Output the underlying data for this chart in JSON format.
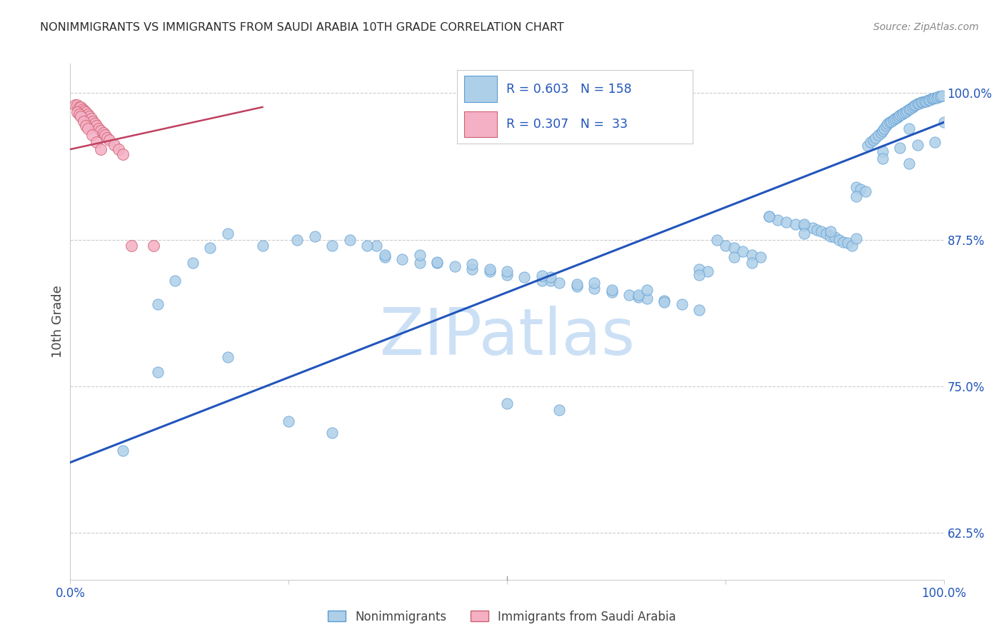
{
  "title": "NONIMMIGRANTS VS IMMIGRANTS FROM SAUDI ARABIA 10TH GRADE CORRELATION CHART",
  "source": "Source: ZipAtlas.com",
  "ylabel": "10th Grade",
  "xlim": [
    0.0,
    1.0
  ],
  "ylim": [
    0.585,
    1.025
  ],
  "yticks": [
    0.625,
    0.75,
    0.875,
    1.0
  ],
  "ytick_labels": [
    "62.5%",
    "75.0%",
    "87.5%",
    "100.0%"
  ],
  "xtick_vals": [
    0.0,
    0.25,
    0.5,
    0.75,
    1.0
  ],
  "xtick_labels": [
    "0.0%",
    "",
    "",
    "",
    "100.0%"
  ],
  "ni_fill": "#aecfe8",
  "ni_edge": "#5b9bd5",
  "ni_line": "#2255bb",
  "im_fill": "#f4b0c5",
  "im_edge": "#d06070",
  "im_line": "#c04060",
  "legend_text_color": "#2255bb",
  "grid_color": "#cccccc",
  "title_color": "#2a2a2a",
  "source_color": "#888888",
  "tick_color": "#2255bb",
  "ylabel_color": "#444444",
  "watermark_text": "ZIPatlas",
  "watermark_color": "#cce0f5",
  "blue_line_x": [
    0.0,
    1.0
  ],
  "blue_line_y": [
    0.685,
    0.975
  ],
  "pink_line_x": [
    0.0,
    0.22
  ],
  "pink_line_y": [
    0.952,
    0.988
  ],
  "ni_x": [
    0.06,
    0.1,
    0.12,
    0.14,
    0.16,
    0.18,
    0.22,
    0.26,
    0.3,
    0.32,
    0.35,
    0.36,
    0.38,
    0.4,
    0.42,
    0.44,
    0.46,
    0.48,
    0.5,
    0.52,
    0.54,
    0.55,
    0.56,
    0.58,
    0.6,
    0.62,
    0.64,
    0.65,
    0.66,
    0.68,
    0.7,
    0.72,
    0.73,
    0.74,
    0.75,
    0.76,
    0.77,
    0.78,
    0.79,
    0.8,
    0.81,
    0.82,
    0.83,
    0.84,
    0.85,
    0.855,
    0.86,
    0.865,
    0.87,
    0.875,
    0.88,
    0.885,
    0.89,
    0.895,
    0.9,
    0.905,
    0.91,
    0.913,
    0.916,
    0.919,
    0.922,
    0.925,
    0.928,
    0.93,
    0.932,
    0.934,
    0.936,
    0.938,
    0.94,
    0.942,
    0.944,
    0.946,
    0.948,
    0.95,
    0.952,
    0.954,
    0.956,
    0.958,
    0.96,
    0.962,
    0.964,
    0.966,
    0.968,
    0.97,
    0.972,
    0.974,
    0.976,
    0.978,
    0.98,
    0.982,
    0.984,
    0.986,
    0.988,
    0.99,
    0.992,
    0.994,
    0.996,
    0.998,
    1.0,
    0.28,
    0.34,
    0.4,
    0.46,
    0.5,
    0.55,
    0.58,
    0.62,
    0.65,
    0.68,
    0.72,
    0.76,
    0.8,
    0.84,
    0.87,
    0.9,
    0.93,
    0.95,
    0.97,
    0.99,
    0.36,
    0.42,
    0.48,
    0.54,
    0.6,
    0.66,
    0.72,
    0.78,
    0.84,
    0.9,
    0.93,
    0.96,
    0.1,
    0.18,
    0.25,
    0.3,
    0.5,
    0.56,
    0.96
  ],
  "ni_y": [
    0.695,
    0.82,
    0.84,
    0.855,
    0.868,
    0.88,
    0.87,
    0.875,
    0.87,
    0.875,
    0.87,
    0.86,
    0.858,
    0.855,
    0.855,
    0.852,
    0.85,
    0.848,
    0.845,
    0.843,
    0.84,
    0.84,
    0.838,
    0.835,
    0.833,
    0.83,
    0.828,
    0.826,
    0.825,
    0.823,
    0.82,
    0.85,
    0.848,
    0.875,
    0.87,
    0.868,
    0.865,
    0.862,
    0.86,
    0.895,
    0.892,
    0.89,
    0.888,
    0.887,
    0.885,
    0.883,
    0.882,
    0.88,
    0.878,
    0.877,
    0.875,
    0.873,
    0.872,
    0.87,
    0.92,
    0.918,
    0.916,
    0.955,
    0.958,
    0.96,
    0.962,
    0.964,
    0.966,
    0.968,
    0.97,
    0.972,
    0.974,
    0.975,
    0.976,
    0.977,
    0.978,
    0.979,
    0.98,
    0.981,
    0.982,
    0.983,
    0.984,
    0.985,
    0.986,
    0.987,
    0.988,
    0.989,
    0.99,
    0.991,
    0.991,
    0.992,
    0.992,
    0.993,
    0.993,
    0.994,
    0.994,
    0.995,
    0.995,
    0.996,
    0.996,
    0.997,
    0.997,
    0.998,
    0.975,
    0.878,
    0.87,
    0.862,
    0.854,
    0.848,
    0.843,
    0.837,
    0.832,
    0.828,
    0.822,
    0.815,
    0.86,
    0.895,
    0.888,
    0.882,
    0.876,
    0.95,
    0.953,
    0.956,
    0.958,
    0.862,
    0.856,
    0.85,
    0.844,
    0.838,
    0.832,
    0.845,
    0.855,
    0.88,
    0.912,
    0.944,
    0.97,
    0.762,
    0.775,
    0.72,
    0.71,
    0.735,
    0.73,
    0.94
  ],
  "im_x": [
    0.005,
    0.008,
    0.01,
    0.012,
    0.014,
    0.016,
    0.018,
    0.02,
    0.022,
    0.024,
    0.026,
    0.028,
    0.03,
    0.032,
    0.035,
    0.038,
    0.04,
    0.042,
    0.045,
    0.05,
    0.055,
    0.06,
    0.07,
    0.008,
    0.01,
    0.012,
    0.015,
    0.018,
    0.02,
    0.025,
    0.03,
    0.035,
    0.095
  ],
  "im_y": [
    0.99,
    0.99,
    0.988,
    0.988,
    0.986,
    0.985,
    0.984,
    0.982,
    0.98,
    0.978,
    0.976,
    0.974,
    0.972,
    0.97,
    0.968,
    0.966,
    0.964,
    0.962,
    0.96,
    0.956,
    0.952,
    0.948,
    0.87,
    0.984,
    0.982,
    0.98,
    0.976,
    0.972,
    0.97,
    0.964,
    0.958,
    0.952,
    0.87
  ]
}
